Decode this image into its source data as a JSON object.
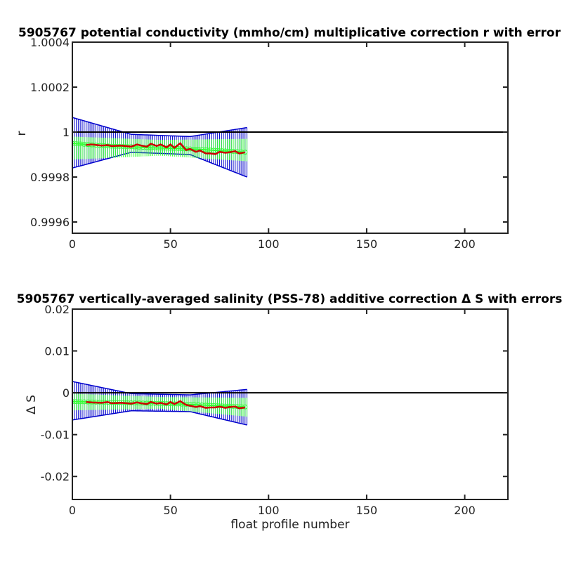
{
  "chart_data": [
    {
      "type": "line",
      "title": "5905767 potential conductivity (mmho/cm) multiplicative correction r with error",
      "xlabel": "",
      "ylabel": "r",
      "xlim": [
        0,
        222
      ],
      "ylim": [
        0.99955,
        1.0004
      ],
      "x_ticks": [
        0,
        50,
        100,
        150,
        200
      ],
      "x_tick_labels": [
        "0",
        "50",
        "100",
        "150",
        "200"
      ],
      "y_ticks": [
        0.9996,
        0.9998,
        1,
        1.0002,
        1.0004
      ],
      "y_tick_labels": [
        "0.9996",
        "0.9998",
        "1",
        "1.0002",
        "1.0004"
      ],
      "reference_line": {
        "y": 1,
        "color": "#000000"
      },
      "colors": {
        "error_bars": "#0000cc",
        "green_series": "#33ff33",
        "red_series": "#cc0000"
      },
      "x_range": [
        0,
        89
      ],
      "blue_error_envelope": [
        {
          "x": 0,
          "lower": 0.99984,
          "upper": 1.000065
        },
        {
          "x": 30,
          "lower": 0.99991,
          "upper": 0.99999
        },
        {
          "x": 60,
          "lower": 0.9999,
          "upper": 0.99998
        },
        {
          "x": 89,
          "lower": 0.9998,
          "upper": 1.00002
        }
      ],
      "green_error_envelope": [
        {
          "x": 0,
          "lower": 0.999878,
          "upper": 0.99998
        },
        {
          "x": 45,
          "lower": 0.999895,
          "upper": 0.999965
        },
        {
          "x": 89,
          "lower": 0.99987,
          "upper": 0.99997
        }
      ],
      "series": [
        {
          "color": "#33ff33",
          "x": [
            0,
            10,
            20,
            30,
            40,
            50,
            60,
            70,
            80,
            89
          ],
          "y": [
            0.99995,
            0.999943,
            0.999937,
            0.999935,
            0.99993,
            0.999928,
            0.999925,
            0.99992,
            0.999915,
            0.99991
          ]
        },
        {
          "color": "#cc0000",
          "x": [
            7,
            10,
            15,
            18,
            20,
            25,
            30,
            33,
            35,
            38,
            40,
            43,
            45,
            48,
            50,
            52,
            55,
            58,
            60,
            63,
            65,
            68,
            70,
            73,
            75,
            78,
            80,
            83,
            85,
            88
          ],
          "y": [
            0.999943,
            0.999945,
            0.99994,
            0.999942,
            0.999938,
            0.99994,
            0.999935,
            0.999945,
            0.99994,
            0.999935,
            0.999948,
            0.999938,
            0.999945,
            0.999932,
            0.999945,
            0.99993,
            0.99995,
            0.99992,
            0.999925,
            0.999912,
            0.999918,
            0.999905,
            0.999905,
            0.999902,
            0.999912,
            0.999908,
            0.99991,
            0.999915,
            0.999905,
            0.99991
          ]
        }
      ]
    },
    {
      "type": "line",
      "title": "5905767 vertically-averaged salinity (PSS-78) additive correction Δ S with errors",
      "xlabel": "float profile number",
      "ylabel": "Δ S",
      "xlim": [
        0,
        222
      ],
      "ylim": [
        -0.0255,
        0.02
      ],
      "x_ticks": [
        0,
        50,
        100,
        150,
        200
      ],
      "x_tick_labels": [
        "0",
        "50",
        "100",
        "150",
        "200"
      ],
      "y_ticks": [
        -0.02,
        -0.01,
        0,
        0.01,
        0.02
      ],
      "y_tick_labels": [
        "-0.02",
        "-0.01",
        "0",
        "0.01",
        "0.02"
      ],
      "reference_line": {
        "y": 0,
        "color": "#000000"
      },
      "colors": {
        "error_bars": "#0000cc",
        "green_series": "#33ff33",
        "red_series": "#cc0000"
      },
      "x_range": [
        0,
        89
      ],
      "blue_error_envelope": [
        {
          "x": 0,
          "lower": -0.0065,
          "upper": 0.0027
        },
        {
          "x": 30,
          "lower": -0.0043,
          "upper": -0.0002
        },
        {
          "x": 60,
          "lower": -0.0045,
          "upper": -0.0005
        },
        {
          "x": 89,
          "lower": -0.0077,
          "upper": 0.0008
        }
      ],
      "green_error_envelope": [
        {
          "x": 0,
          "lower": -0.0042,
          "upper": -0.0002
        },
        {
          "x": 45,
          "lower": -0.0038,
          "upper": -0.001
        },
        {
          "x": 89,
          "lower": -0.0057,
          "upper": -0.0012
        }
      ],
      "series": [
        {
          "color": "#33ff33",
          "x": [
            0,
            10,
            20,
            30,
            40,
            50,
            60,
            70,
            80,
            89
          ],
          "y": [
            -0.0021,
            -0.0022,
            -0.0023,
            -0.0024,
            -0.0025,
            -0.0026,
            -0.0028,
            -0.003,
            -0.0032,
            -0.0034
          ]
        },
        {
          "color": "#cc0000",
          "x": [
            7,
            10,
            15,
            18,
            20,
            25,
            30,
            33,
            35,
            38,
            40,
            43,
            45,
            48,
            50,
            52,
            55,
            58,
            60,
            63,
            65,
            68,
            70,
            73,
            75,
            78,
            80,
            83,
            85,
            88
          ],
          "y": [
            -0.0022,
            -0.0023,
            -0.0024,
            -0.0022,
            -0.0025,
            -0.0024,
            -0.0026,
            -0.0023,
            -0.0025,
            -0.0027,
            -0.0022,
            -0.0026,
            -0.0024,
            -0.0028,
            -0.0022,
            -0.0027,
            -0.002,
            -0.0029,
            -0.0031,
            -0.0034,
            -0.0032,
            -0.0036,
            -0.0035,
            -0.0035,
            -0.0033,
            -0.0036,
            -0.0034,
            -0.0033,
            -0.0037,
            -0.0035
          ]
        }
      ]
    }
  ]
}
